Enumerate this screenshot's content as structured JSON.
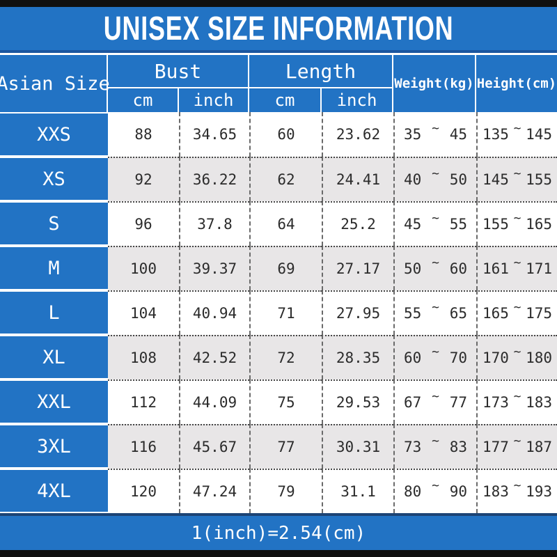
{
  "colors": {
    "blue": "#2273c4",
    "alt_row": "#e8e6e7",
    "bar": "#101010"
  },
  "chart_data": {
    "type": "table",
    "title": "UNISEX SIZE INFORMATION",
    "footer_note": "1(inch)=2.54(cm)",
    "range_separator": "~",
    "columns": {
      "size": "Asian Size",
      "bust_group": "Bust",
      "length_group": "Length",
      "cm": "cm",
      "inch": "inch",
      "weight": "Weight(kg)",
      "height": "Height(cm)"
    },
    "rows": [
      {
        "size": "XXS",
        "bust_cm": "88",
        "bust_inch": "34.65",
        "length_cm": "60",
        "length_inch": "23.62",
        "weight_min": "35",
        "weight_max": "45",
        "height_min": "135",
        "height_max": "145"
      },
      {
        "size": "XS",
        "bust_cm": "92",
        "bust_inch": "36.22",
        "length_cm": "62",
        "length_inch": "24.41",
        "weight_min": "40",
        "weight_max": "50",
        "height_min": "145",
        "height_max": "155"
      },
      {
        "size": "S",
        "bust_cm": "96",
        "bust_inch": "37.8",
        "length_cm": "64",
        "length_inch": "25.2",
        "weight_min": "45",
        "weight_max": "55",
        "height_min": "155",
        "height_max": "165"
      },
      {
        "size": "M",
        "bust_cm": "100",
        "bust_inch": "39.37",
        "length_cm": "69",
        "length_inch": "27.17",
        "weight_min": "50",
        "weight_max": "60",
        "height_min": "161",
        "height_max": "171"
      },
      {
        "size": "L",
        "bust_cm": "104",
        "bust_inch": "40.94",
        "length_cm": "71",
        "length_inch": "27.95",
        "weight_min": "55",
        "weight_max": "65",
        "height_min": "165",
        "height_max": "175"
      },
      {
        "size": "XL",
        "bust_cm": "108",
        "bust_inch": "42.52",
        "length_cm": "72",
        "length_inch": "28.35",
        "weight_min": "60",
        "weight_max": "70",
        "height_min": "170",
        "height_max": "180"
      },
      {
        "size": "XXL",
        "bust_cm": "112",
        "bust_inch": "44.09",
        "length_cm": "75",
        "length_inch": "29.53",
        "weight_min": "67",
        "weight_max": "77",
        "height_min": "173",
        "height_max": "183"
      },
      {
        "size": "3XL",
        "bust_cm": "116",
        "bust_inch": "45.67",
        "length_cm": "77",
        "length_inch": "30.31",
        "weight_min": "73",
        "weight_max": "83",
        "height_min": "177",
        "height_max": "187"
      },
      {
        "size": "4XL",
        "bust_cm": "120",
        "bust_inch": "47.24",
        "length_cm": "79",
        "length_inch": "31.1",
        "weight_min": "80",
        "weight_max": "90",
        "height_min": "183",
        "height_max": "193"
      }
    ]
  }
}
